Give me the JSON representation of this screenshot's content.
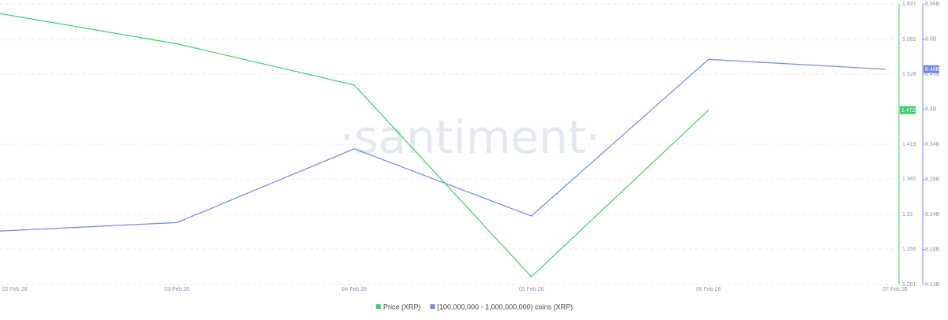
{
  "chart_data": {
    "type": "line",
    "watermark": "·santiment·",
    "categories": [
      "02 Feb 26",
      "03 Feb 26",
      "04 Feb 26",
      "05 Feb 26",
      "06 Feb 26",
      "07 Feb 26"
    ],
    "ylim": [
      1.201,
      1.637
    ],
    "yticks": [
      1.201,
      1.256,
      1.31,
      1.365,
      1.419,
      1.528,
      1.582,
      1.637
    ],
    "y2lim": [
      8130000000,
      8560000000
    ],
    "y2ticks": [
      {
        "value": 8130000000,
        "label": "8.13B"
      },
      {
        "value": 8183750000,
        "label": "8.18B"
      },
      {
        "value": 8237500000,
        "label": "8.24B"
      },
      {
        "value": 8291250000,
        "label": "8.29B"
      },
      {
        "value": 8345000000,
        "label": "8.34B"
      },
      {
        "value": 8398750000,
        "label": "8.4B"
      },
      {
        "value": 8452500000,
        "label": "8.45B"
      },
      {
        "value": 8506250000,
        "label": "8.5B"
      },
      {
        "value": 8560000000,
        "label": "8.56B"
      }
    ],
    "grid": true,
    "series": [
      {
        "name": "Price (XRP)",
        "color": "#3fcf6b",
        "values": [
          1.622,
          1.575,
          1.511,
          1.213,
          1.472,
          null
        ]
      },
      {
        "name": "[100,000,000 - 1,000,000,000) coins (XRP)",
        "color": "#6f8ae0",
        "axis": "y2",
        "values": [
          8212000000,
          8225000000,
          8338000000,
          8235000000,
          8475000000,
          8460000000
        ],
        "value_labels": [
          null,
          null,
          null,
          null,
          null,
          "8.46B"
        ]
      }
    ]
  }
}
